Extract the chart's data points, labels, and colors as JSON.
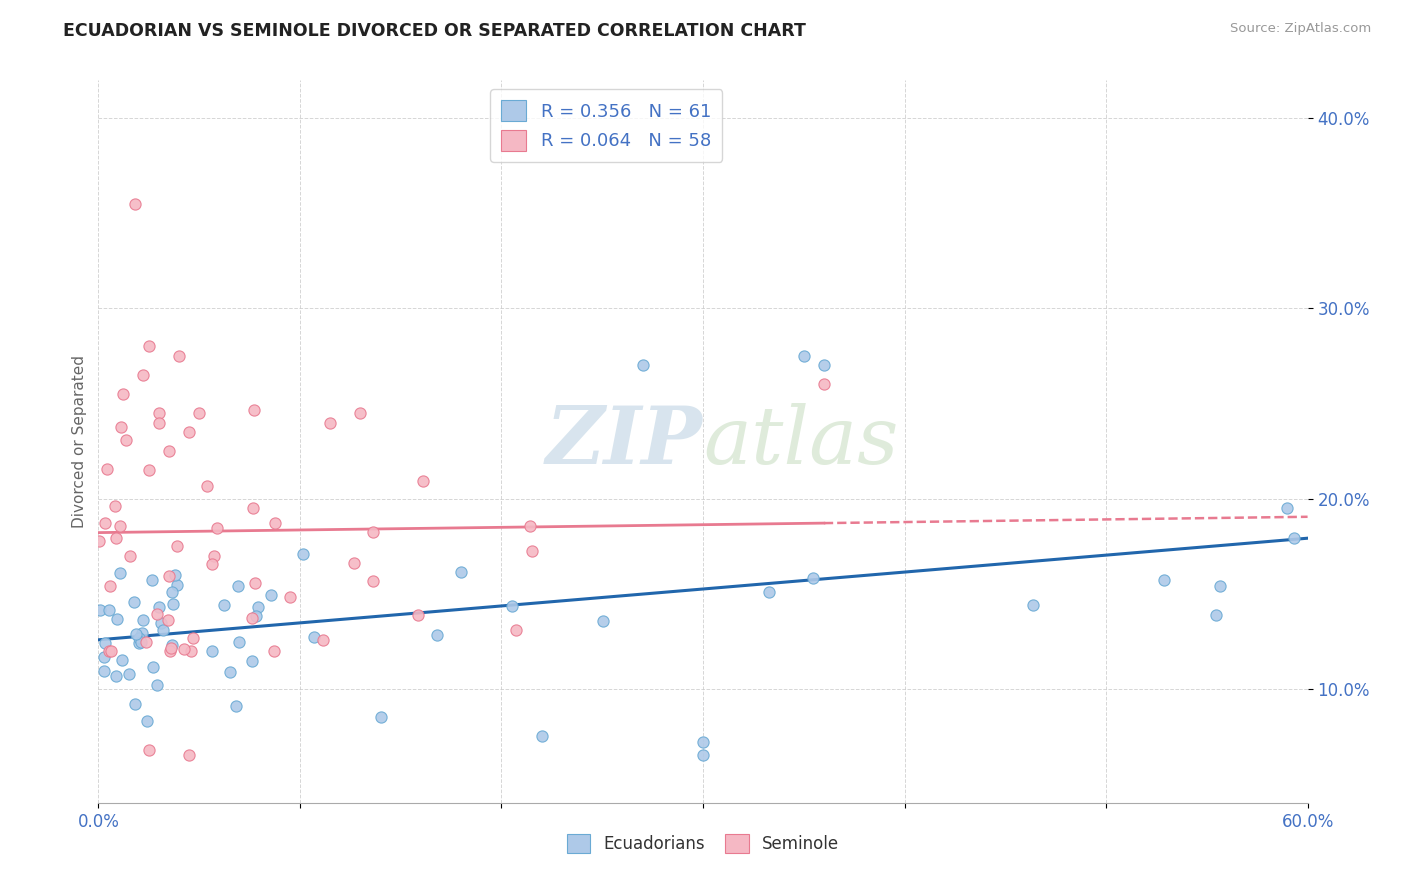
{
  "title": "ECUADORIAN VS SEMINOLE DIVORCED OR SEPARATED CORRELATION CHART",
  "source": "Source: ZipAtlas.com",
  "ylabel": "Divorced or Separated",
  "xmin": 0.0,
  "xmax": 0.6,
  "ymin": 0.04,
  "ymax": 0.42,
  "yticks": [
    0.1,
    0.2,
    0.3,
    0.4
  ],
  "ytick_labels": [
    "10.0%",
    "20.0%",
    "30.0%",
    "40.0%"
  ],
  "xticks": [
    0.0,
    0.1,
    0.2,
    0.3,
    0.4,
    0.5,
    0.6
  ],
  "xtick_labels": [
    "0.0%",
    "",
    "",
    "",
    "",
    "",
    "60.0%"
  ],
  "legend_r_blue": "R = 0.356",
  "legend_n_blue": "N = 61",
  "legend_r_pink": "R = 0.064",
  "legend_n_pink": "N = 58",
  "blue_dot_face": "#aec9e8",
  "blue_dot_edge": "#6aaad4",
  "pink_dot_face": "#f5b8c4",
  "pink_dot_edge": "#e87a90",
  "blue_line_color": "#2166ac",
  "pink_line_color": "#e87a90",
  "background_color": "#ffffff",
  "grid_color": "#cccccc",
  "watermark_zip": "ZIP",
  "watermark_atlas": "atlas",
  "tick_color": "#4472c4",
  "title_color": "#222222",
  "source_color": "#999999",
  "ylabel_color": "#666666"
}
